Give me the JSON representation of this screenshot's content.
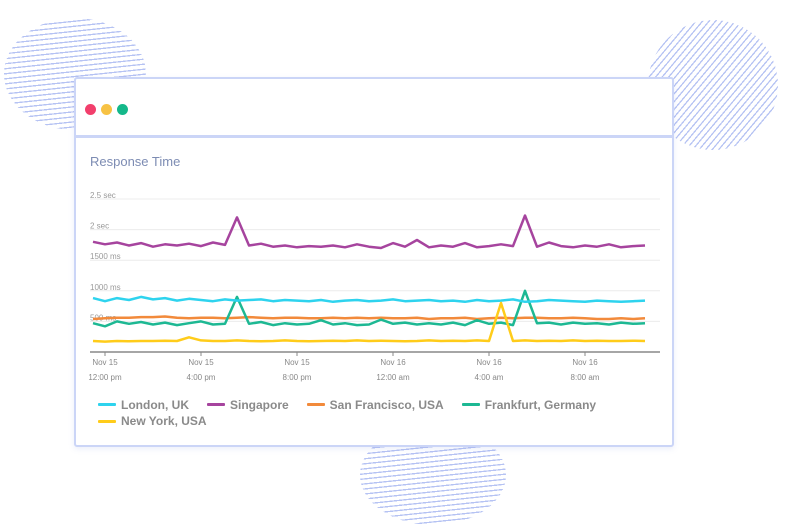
{
  "window": {
    "dots": [
      {
        "name": "close",
        "color": "#f23f6c"
      },
      {
        "name": "minimize",
        "color": "#f7c244"
      },
      {
        "name": "maximize",
        "color": "#14b88a"
      }
    ]
  },
  "chart_data": {
    "type": "line",
    "title": "Response Time",
    "xlabel": "",
    "ylabel": "",
    "ylim": [
      0,
      2500
    ],
    "y_ticks": [
      {
        "value": 500,
        "label": "500 ms"
      },
      {
        "value": 1000,
        "label": "1000 ms"
      },
      {
        "value": 1500,
        "label": "1500 ms"
      },
      {
        "value": 2000,
        "label": "2 sec"
      },
      {
        "value": 2500,
        "label": "2.5 sec"
      }
    ],
    "x_ticks": [
      {
        "value": "Nov 15 12:00",
        "line1": "Nov 15",
        "line2": "12:00 pm"
      },
      {
        "value": "Nov 15 16:00",
        "line1": "Nov 15",
        "line2": "4:00 pm"
      },
      {
        "value": "Nov 15 20:00",
        "line1": "Nov 15",
        "line2": "8:00 pm"
      },
      {
        "value": "Nov 16 00:00",
        "line1": "Nov 16",
        "line2": "12:00 am"
      },
      {
        "value": "Nov 16 04:00",
        "line1": "Nov 16",
        "line2": "4:00 am"
      },
      {
        "value": "Nov 16 08:00",
        "line1": "Nov 16",
        "line2": "8:00 am"
      }
    ],
    "grid": true,
    "legend": "bottom",
    "x_start": "Nov 15 11:30",
    "x_step_minutes": 30,
    "series": [
      {
        "name": "London, UK",
        "color": "#2ed3ee",
        "values": [
          880,
          830,
          880,
          850,
          900,
          860,
          880,
          840,
          870,
          850,
          830,
          860,
          840,
          850,
          860,
          830,
          850,
          840,
          830,
          850,
          820,
          840,
          850,
          830,
          840,
          860,
          830,
          840,
          850,
          830,
          840,
          820,
          850,
          830,
          840,
          860,
          820,
          830,
          850,
          840,
          830,
          820,
          840,
          830,
          820,
          830,
          840
        ]
      },
      {
        "name": "Singapore",
        "color": "#a6449e",
        "values": [
          1800,
          1760,
          1790,
          1740,
          1780,
          1720,
          1760,
          1740,
          1770,
          1730,
          1790,
          1750,
          2200,
          1740,
          1770,
          1720,
          1740,
          1710,
          1730,
          1720,
          1740,
          1710,
          1760,
          1720,
          1700,
          1780,
          1720,
          1830,
          1710,
          1740,
          1720,
          1780,
          1710,
          1730,
          1760,
          1730,
          2230,
          1720,
          1790,
          1730,
          1710,
          1740,
          1720,
          1760,
          1710,
          1730,
          1740
        ]
      },
      {
        "name": "San Francisco, USA",
        "color": "#f28a3b",
        "values": [
          540,
          550,
          560,
          560,
          570,
          570,
          580,
          560,
          550,
          560,
          560,
          550,
          560,
          570,
          560,
          550,
          560,
          560,
          550,
          550,
          560,
          550,
          560,
          550,
          560,
          550,
          550,
          560,
          540,
          550,
          550,
          560,
          540,
          550,
          560,
          550,
          560,
          560,
          550,
          550,
          560,
          550,
          540,
          540,
          550,
          540,
          550
        ]
      },
      {
        "name": "Frankfurt, Germany",
        "color": "#1db893",
        "values": [
          470,
          420,
          500,
          460,
          490,
          450,
          480,
          440,
          470,
          500,
          450,
          460,
          900,
          460,
          490,
          440,
          470,
          450,
          460,
          520,
          450,
          470,
          440,
          450,
          530,
          460,
          480,
          450,
          470,
          450,
          480,
          440,
          520,
          460,
          480,
          440,
          1000,
          470,
          480,
          450,
          480,
          460,
          470,
          450,
          480,
          460,
          470
        ]
      },
      {
        "name": "New York, USA",
        "color": "#ffcc1a",
        "values": [
          180,
          170,
          180,
          175,
          180,
          180,
          185,
          180,
          240,
          190,
          180,
          180,
          190,
          180,
          175,
          180,
          190,
          180,
          175,
          180,
          185,
          180,
          190,
          180,
          185,
          180,
          175,
          180,
          190,
          180,
          185,
          180,
          190,
          180,
          800,
          180,
          190,
          180,
          185,
          180,
          190,
          180,
          185,
          180,
          180,
          185,
          180
        ]
      }
    ]
  }
}
